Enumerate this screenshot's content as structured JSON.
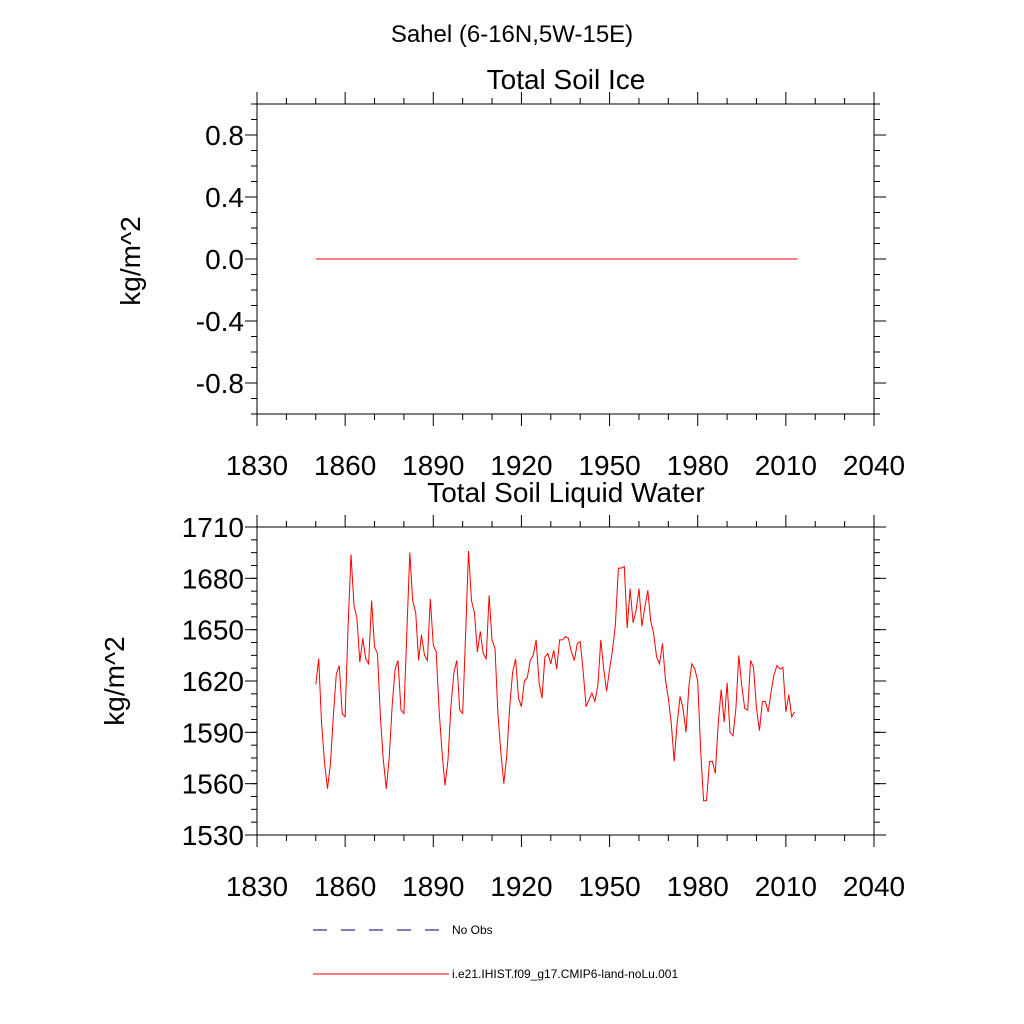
{
  "figure_title": "Sahel (6-16N,5W-15E)",
  "legend": {
    "entries": [
      {
        "label": "No Obs",
        "style": "dashed",
        "color": "#000080"
      },
      {
        "label": "i.e21.IHIST.f09_g17.CMIP6-land-noLu.001",
        "style": "solid",
        "color": "#ff0000"
      }
    ]
  },
  "chart_data": [
    {
      "type": "line",
      "title": "Total Soil Ice",
      "xlabel": "",
      "ylabel": "kg/m^2",
      "xlim": [
        1830,
        2040
      ],
      "ylim": [
        -1.0,
        1.0
      ],
      "xticks": [
        "1830",
        "1860",
        "1890",
        "1920",
        "1950",
        "1980",
        "2010",
        "2040"
      ],
      "yticks": [
        "0.8",
        "0.4",
        "0.0",
        "-0.4",
        "-0.8"
      ],
      "grid": false,
      "series": [
        {
          "name": "i.e21.IHIST.f09_g17.CMIP6-land-noLu.001",
          "color": "#ff0000",
          "x": [
            1850,
            2014
          ],
          "y": [
            0.0,
            0.0
          ]
        }
      ]
    },
    {
      "type": "line",
      "title": "Total Soil Liquid Water",
      "xlabel": "",
      "ylabel": "kg/m^2",
      "xlim": [
        1830,
        2040
      ],
      "ylim": [
        1530,
        1710
      ],
      "xticks": [
        "1830",
        "1860",
        "1890",
        "1920",
        "1950",
        "1980",
        "2010",
        "2040"
      ],
      "yticks": [
        "1710",
        "1680",
        "1650",
        "1620",
        "1590",
        "1560",
        "1530"
      ],
      "grid": false,
      "series": [
        {
          "name": "i.e21.IHIST.f09_g17.CMIP6-land-noLu.001",
          "color": "#ff0000",
          "x_start": 1850,
          "x_step": 1,
          "y": [
            1618,
            1633,
            1595,
            1572,
            1557,
            1572,
            1600,
            1624,
            1629,
            1601,
            1599,
            1652,
            1694,
            1664,
            1657,
            1631,
            1645,
            1633,
            1630,
            1667,
            1640,
            1636,
            1599,
            1574,
            1557,
            1575,
            1606,
            1627,
            1632,
            1603,
            1601,
            1648,
            1695,
            1667,
            1660,
            1632,
            1647,
            1635,
            1632,
            1668,
            1641,
            1637,
            1602,
            1578,
            1559,
            1574,
            1605,
            1625,
            1632,
            1603,
            1601,
            1647,
            1696,
            1667,
            1660,
            1637,
            1649,
            1636,
            1633,
            1670,
            1644,
            1639,
            1601,
            1578,
            1560,
            1576,
            1605,
            1625,
            1633,
            1610,
            1605,
            1620,
            1622,
            1632,
            1635,
            1644,
            1619,
            1610,
            1634,
            1636,
            1630,
            1638,
            1627,
            1644,
            1644,
            1646,
            1645,
            1637,
            1632,
            1642,
            1643,
            1626,
            1605,
            1609,
            1613,
            1608,
            1617,
            1644,
            1627,
            1614,
            1627,
            1638,
            1653,
            1686,
            1686,
            1687,
            1651,
            1674,
            1654,
            1661,
            1674,
            1652,
            1663,
            1673,
            1655,
            1648,
            1634,
            1630,
            1642,
            1621,
            1610,
            1595,
            1573,
            1595,
            1611,
            1604,
            1590,
            1617,
            1630,
            1627,
            1620,
            1579,
            1550,
            1550,
            1573,
            1573,
            1566,
            1596,
            1615,
            1596,
            1619,
            1590,
            1588,
            1604,
            1635,
            1617,
            1604,
            1603,
            1632,
            1628,
            1604,
            1591,
            1608,
            1608,
            1602,
            1614,
            1624,
            1629,
            1627,
            1628,
            1602,
            1612,
            1599,
            1602
          ]
        }
      ]
    }
  ]
}
